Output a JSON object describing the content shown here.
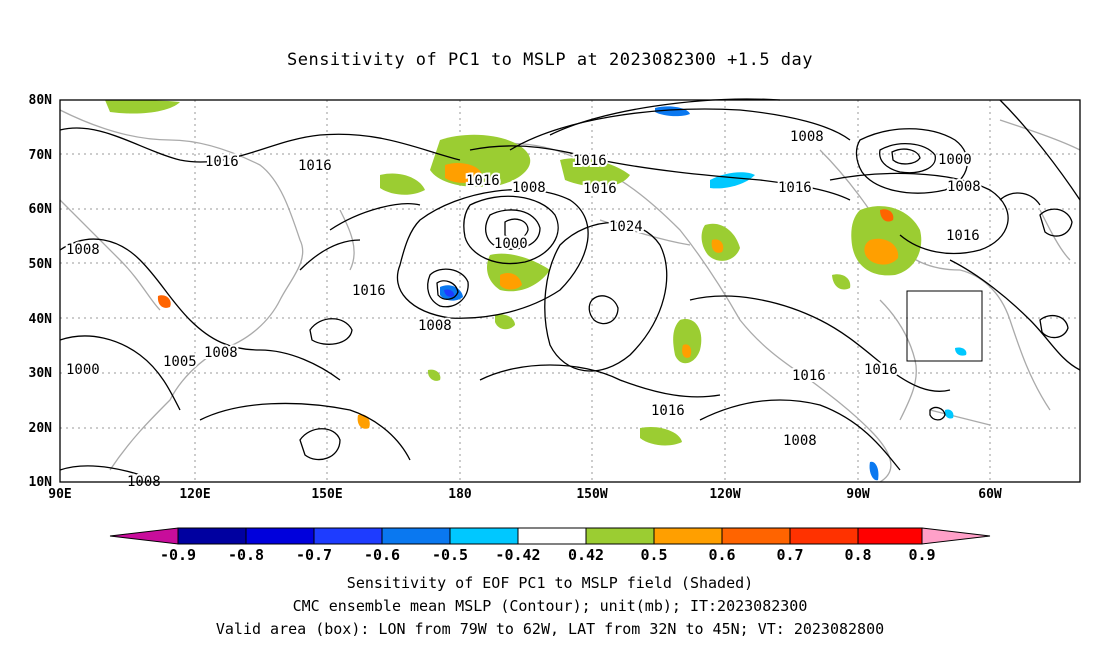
{
  "title": "Sensitivity of PC1 to MSLP at 2023082300 +1.5 day",
  "lat_labels": [
    "80N",
    "70N",
    "60N",
    "50N",
    "40N",
    "30N",
    "20N",
    "10N"
  ],
  "lon_labels": [
    "90E",
    "120E",
    "150E",
    "180",
    "150W",
    "120W",
    "90W",
    "60W"
  ],
  "contour_labels": [
    "1016",
    "1016",
    "1016",
    "1016",
    "1016",
    "1008",
    "1016",
    "1008",
    "1000",
    "1024",
    "1008",
    "1000",
    "1008",
    "1016",
    "1016",
    "1008",
    "1008",
    "1008",
    "1005",
    "1000",
    "1008",
    "1016",
    "1016",
    "1016",
    "1008",
    "1008"
  ],
  "colorbar": {
    "ticks": [
      "-0.9",
      "-0.8",
      "-0.7",
      "-0.6",
      "-0.5",
      "-0.42",
      "0.42",
      "0.5",
      "0.6",
      "0.7",
      "0.8",
      "0.9"
    ],
    "colors": [
      "#c80d9b",
      "#0000a0",
      "#0000dc",
      "#1e3cff",
      "#0a78f0",
      "#00c8ff",
      "#ffffff",
      "#9bcd32",
      "#ff9f00",
      "#ff6400",
      "#ff3200",
      "#ff0000",
      "#ffa0c8"
    ]
  },
  "box": {
    "label": "Valid area",
    "lon_from": "79W",
    "lon_to": "62W",
    "lat_from": "32N",
    "lat_to": "45N"
  },
  "captions": {
    "line1": "Sensitivity of EOF PC1 to MSLP field (Shaded)",
    "line2": "CMC ensemble mean MSLP (Contour); unit(mb); IT:2023082300",
    "line3": "Valid area (box): LON from 79W to 62W, LAT from 32N to 45N; VT: 2023082800"
  }
}
